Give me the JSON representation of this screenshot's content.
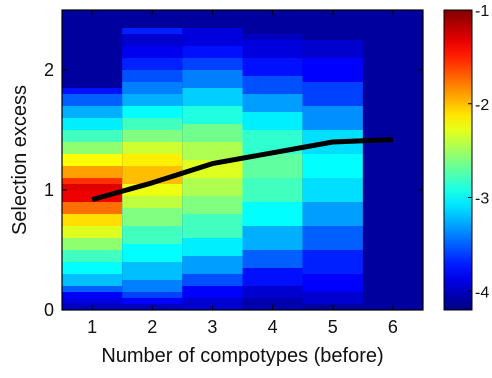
{
  "chart_data": {
    "type": "heatmap",
    "title": "",
    "xlabel": "Number of compotypes (before)",
    "ylabel": "Selection excess",
    "x_categories": [
      1,
      2,
      3,
      4,
      5,
      6
    ],
    "xlim": [
      0.5,
      6.5
    ],
    "ylim": [
      0,
      2.5
    ],
    "y_ticks": [
      0,
      1,
      2
    ],
    "grid": false,
    "colorbar": {
      "range": [
        -4.2,
        -1
      ],
      "ticks": [
        -1,
        -2,
        -3,
        -4
      ],
      "labels": [
        "-1",
        "-2",
        "-3",
        "-4"
      ],
      "colormap": "jet"
    },
    "heatmap": {
      "y_bin_width": 0.05,
      "background_value": -4.1,
      "columns": [
        {
          "x": 1,
          "bins": [
            {
              "y0": 0.0,
              "y1": 0.05,
              "v": -4.0
            },
            {
              "y0": 0.05,
              "y1": 0.1,
              "v": -3.9
            },
            {
              "y0": 0.1,
              "y1": 0.15,
              "v": -3.8
            },
            {
              "y0": 0.15,
              "y1": 0.2,
              "v": -3.5
            },
            {
              "y0": 0.2,
              "y1": 0.3,
              "v": -3.2
            },
            {
              "y0": 0.3,
              "y1": 0.4,
              "v": -3.0
            },
            {
              "y0": 0.4,
              "y1": 0.5,
              "v": -2.8
            },
            {
              "y0": 0.5,
              "y1": 0.6,
              "v": -2.55
            },
            {
              "y0": 0.6,
              "y1": 0.7,
              "v": -2.3
            },
            {
              "y0": 0.7,
              "y1": 0.8,
              "v": -2.1
            },
            {
              "y0": 0.8,
              "y1": 0.9,
              "v": -1.75
            },
            {
              "y0": 0.9,
              "y1": 1.0,
              "v": -1.35
            },
            {
              "y0": 1.0,
              "y1": 1.05,
              "v": -1.3
            },
            {
              "y0": 1.05,
              "y1": 1.1,
              "v": -1.55
            },
            {
              "y0": 1.1,
              "y1": 1.2,
              "v": -1.9
            },
            {
              "y0": 1.2,
              "y1": 1.3,
              "v": -2.2
            },
            {
              "y0": 1.3,
              "y1": 1.4,
              "v": -2.55
            },
            {
              "y0": 1.4,
              "y1": 1.5,
              "v": -2.8
            },
            {
              "y0": 1.5,
              "y1": 1.6,
              "v": -3.05
            },
            {
              "y0": 1.6,
              "y1": 1.7,
              "v": -3.25
            },
            {
              "y0": 1.7,
              "y1": 1.8,
              "v": -3.5
            },
            {
              "y0": 1.8,
              "y1": 1.85,
              "v": -3.75
            }
          ]
        },
        {
          "x": 2,
          "bins": [
            {
              "y0": 0.0,
              "y1": 0.05,
              "v": -4.0
            },
            {
              "y0": 0.05,
              "y1": 0.1,
              "v": -3.8
            },
            {
              "y0": 0.1,
              "y1": 0.15,
              "v": -3.6
            },
            {
              "y0": 0.15,
              "y1": 0.25,
              "v": -3.4
            },
            {
              "y0": 0.25,
              "y1": 0.4,
              "v": -3.2
            },
            {
              "y0": 0.4,
              "y1": 0.55,
              "v": -3.0
            },
            {
              "y0": 0.55,
              "y1": 0.7,
              "v": -2.8
            },
            {
              "y0": 0.7,
              "y1": 0.85,
              "v": -2.6
            },
            {
              "y0": 0.85,
              "y1": 0.95,
              "v": -2.4
            },
            {
              "y0": 0.95,
              "y1": 1.05,
              "v": -2.25
            },
            {
              "y0": 1.05,
              "y1": 1.2,
              "v": -2.0
            },
            {
              "y0": 1.2,
              "y1": 1.3,
              "v": -2.15
            },
            {
              "y0": 1.3,
              "y1": 1.4,
              "v": -2.35
            },
            {
              "y0": 1.4,
              "y1": 1.5,
              "v": -2.6
            },
            {
              "y0": 1.5,
              "y1": 1.6,
              "v": -2.8
            },
            {
              "y0": 1.6,
              "y1": 1.7,
              "v": -3.0
            },
            {
              "y0": 1.7,
              "y1": 1.8,
              "v": -3.25
            },
            {
              "y0": 1.8,
              "y1": 1.9,
              "v": -3.4
            },
            {
              "y0": 1.9,
              "y1": 2.0,
              "v": -3.55
            },
            {
              "y0": 2.0,
              "y1": 2.1,
              "v": -3.7
            },
            {
              "y0": 2.1,
              "y1": 2.2,
              "v": -3.85
            },
            {
              "y0": 2.2,
              "y1": 2.3,
              "v": -3.95
            },
            {
              "y0": 2.3,
              "y1": 2.35,
              "v": -3.7
            }
          ]
        },
        {
          "x": 3,
          "bins": [
            {
              "y0": 0.0,
              "y1": 0.1,
              "v": -3.95
            },
            {
              "y0": 0.1,
              "y1": 0.2,
              "v": -3.8
            },
            {
              "y0": 0.2,
              "y1": 0.3,
              "v": -3.55
            },
            {
              "y0": 0.3,
              "y1": 0.45,
              "v": -3.3
            },
            {
              "y0": 0.45,
              "y1": 0.6,
              "v": -3.05
            },
            {
              "y0": 0.6,
              "y1": 0.8,
              "v": -2.8
            },
            {
              "y0": 0.8,
              "y1": 0.95,
              "v": -2.6
            },
            {
              "y0": 0.95,
              "y1": 1.1,
              "v": -2.45
            },
            {
              "y0": 1.1,
              "y1": 1.25,
              "v": -2.3
            },
            {
              "y0": 1.25,
              "y1": 1.4,
              "v": -2.45
            },
            {
              "y0": 1.4,
              "y1": 1.55,
              "v": -2.65
            },
            {
              "y0": 1.55,
              "y1": 1.7,
              "v": -2.9
            },
            {
              "y0": 1.7,
              "y1": 1.85,
              "v": -3.15
            },
            {
              "y0": 1.85,
              "y1": 2.0,
              "v": -3.4
            },
            {
              "y0": 2.0,
              "y1": 2.1,
              "v": -3.6
            },
            {
              "y0": 2.1,
              "y1": 2.2,
              "v": -3.75
            },
            {
              "y0": 2.2,
              "y1": 2.35,
              "v": -3.9
            }
          ]
        },
        {
          "x": 4,
          "bins": [
            {
              "y0": 0.0,
              "y1": 0.1,
              "v": -4.05
            },
            {
              "y0": 0.1,
              "y1": 0.2,
              "v": -3.95
            },
            {
              "y0": 0.2,
              "y1": 0.35,
              "v": -3.75
            },
            {
              "y0": 0.35,
              "y1": 0.5,
              "v": -3.5
            },
            {
              "y0": 0.5,
              "y1": 0.7,
              "v": -3.25
            },
            {
              "y0": 0.7,
              "y1": 0.9,
              "v": -3.0
            },
            {
              "y0": 0.9,
              "y1": 1.1,
              "v": -2.8
            },
            {
              "y0": 1.1,
              "y1": 1.3,
              "v": -2.7
            },
            {
              "y0": 1.3,
              "y1": 1.5,
              "v": -2.85
            },
            {
              "y0": 1.5,
              "y1": 1.65,
              "v": -3.05
            },
            {
              "y0": 1.65,
              "y1": 1.8,
              "v": -3.3
            },
            {
              "y0": 1.8,
              "y1": 1.95,
              "v": -3.55
            },
            {
              "y0": 1.95,
              "y1": 2.1,
              "v": -3.75
            },
            {
              "y0": 2.1,
              "y1": 2.25,
              "v": -3.9
            },
            {
              "y0": 2.25,
              "y1": 2.3,
              "v": -4.0
            }
          ]
        },
        {
          "x": 5,
          "bins": [
            {
              "y0": 0.05,
              "y1": 0.15,
              "v": -3.95
            },
            {
              "y0": 0.15,
              "y1": 0.3,
              "v": -3.8
            },
            {
              "y0": 0.3,
              "y1": 0.5,
              "v": -3.7
            },
            {
              "y0": 0.5,
              "y1": 0.7,
              "v": -3.5
            },
            {
              "y0": 0.7,
              "y1": 0.9,
              "v": -3.3
            },
            {
              "y0": 0.9,
              "y1": 1.1,
              "v": -3.1
            },
            {
              "y0": 1.1,
              "y1": 1.3,
              "v": -3.0
            },
            {
              "y0": 1.3,
              "y1": 1.5,
              "v": -3.1
            },
            {
              "y0": 1.5,
              "y1": 1.7,
              "v": -3.35
            },
            {
              "y0": 1.7,
              "y1": 1.9,
              "v": -3.6
            },
            {
              "y0": 1.9,
              "y1": 2.1,
              "v": -3.8
            },
            {
              "y0": 2.1,
              "y1": 2.25,
              "v": -3.95
            }
          ]
        },
        {
          "x": 6,
          "bins": []
        }
      ]
    },
    "series": [
      {
        "type": "line",
        "x": [
          1,
          2,
          3,
          4,
          5,
          6
        ],
        "y": [
          0.92,
          1.06,
          1.22,
          1.31,
          1.4,
          1.42
        ],
        "color": "#000000"
      }
    ]
  }
}
